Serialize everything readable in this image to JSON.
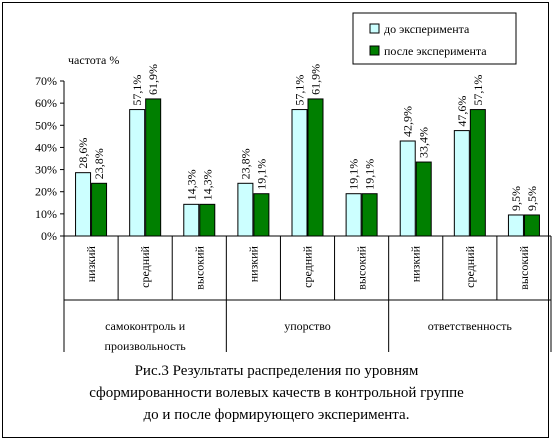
{
  "chart_data": {
    "type": "bar",
    "ylabel": "частота %",
    "ylim": [
      0,
      70
    ],
    "yticks": [
      "0%",
      "10%",
      "20%",
      "30%",
      "40%",
      "50%",
      "60%",
      "70%"
    ],
    "groups": [
      {
        "label": "самоконтроль и произвольность",
        "label_lines": [
          "самоконтроль и",
          "произвольность"
        ],
        "categories": [
          "низкий",
          "средний",
          "высокий"
        ]
      },
      {
        "label": "упорство",
        "label_lines": [
          "упорство"
        ],
        "categories": [
          "низкий",
          "средний",
          "высокий"
        ]
      },
      {
        "label": "ответственность",
        "label_lines": [
          "ответственность"
        ],
        "categories": [
          "низкий",
          "средний",
          "высокий"
        ]
      }
    ],
    "categories": [
      "низкий",
      "средний",
      "высокий",
      "низкий",
      "средний",
      "высокий",
      "низкий",
      "средний",
      "высокий"
    ],
    "series": [
      {
        "name": "до эксперимента",
        "color": "#ccffff",
        "values": [
          28.6,
          57.1,
          14.3,
          23.8,
          57.1,
          19.1,
          42.9,
          47.6,
          9.5
        ],
        "labels": [
          "28,6%",
          "57,1%",
          "14,3%",
          "23,8%",
          "57,1%",
          "19,1%",
          "42,9%",
          "47,6%",
          "9,5%"
        ]
      },
      {
        "name": "после эксперимента",
        "color": "#007f00",
        "values": [
          23.8,
          61.9,
          14.3,
          19.1,
          61.9,
          19.1,
          33.4,
          57.1,
          9.5
        ],
        "labels": [
          "23,8%",
          "61,9%",
          "14,3%",
          "19,1%",
          "61,9%",
          "19,1%",
          "33,4%",
          "57,1%",
          "9,5%"
        ]
      }
    ],
    "legend": "top-right",
    "grid": false
  },
  "caption": {
    "lines": [
      "Рис.3 Результаты распределения по уровням",
      "сформированности волевых качеств в контрольной группе",
      "до и после формирующего эксперимента."
    ]
  }
}
